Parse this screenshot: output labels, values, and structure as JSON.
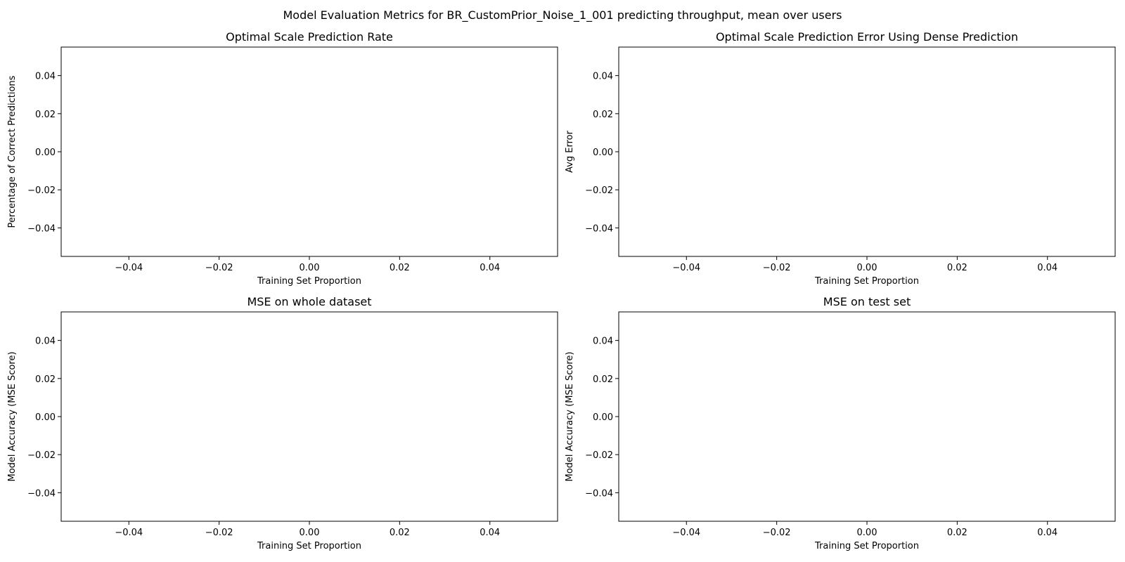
{
  "suptitle": "Model Evaluation Metrics for BR_CustomPrior_Noise_1_001 predicting throughput, mean over users",
  "chart_data": [
    {
      "type": "line",
      "title": "Optimal Scale Prediction Rate",
      "xlabel": "Training Set Proportion",
      "ylabel": "Percentage of Correct Predictions",
      "xlim": [
        -0.055,
        0.055
      ],
      "ylim": [
        -0.055,
        0.055
      ],
      "xticks": [
        -0.04,
        -0.02,
        0.0,
        0.02,
        0.04
      ],
      "xtick_labels": [
        "−0.04",
        "−0.02",
        "0.00",
        "0.02",
        "0.04"
      ],
      "yticks": [
        0.04,
        0.02,
        0.0,
        -0.02,
        -0.04
      ],
      "ytick_labels": [
        "0.04",
        "0.02",
        "0.00",
        "−0.02",
        "−0.04"
      ],
      "series": [],
      "grid": false
    },
    {
      "type": "line",
      "title": "Optimal Scale Prediction Error Using Dense Prediction",
      "xlabel": "Training Set Proportion",
      "ylabel": "Avg Error",
      "xlim": [
        -0.055,
        0.055
      ],
      "ylim": [
        -0.055,
        0.055
      ],
      "xticks": [
        -0.04,
        -0.02,
        0.0,
        0.02,
        0.04
      ],
      "xtick_labels": [
        "−0.04",
        "−0.02",
        "0.00",
        "0.02",
        "0.04"
      ],
      "yticks": [
        0.04,
        0.02,
        0.0,
        -0.02,
        -0.04
      ],
      "ytick_labels": [
        "0.04",
        "0.02",
        "0.00",
        "−0.02",
        "−0.04"
      ],
      "series": [],
      "grid": false
    },
    {
      "type": "line",
      "title": "MSE on whole dataset",
      "xlabel": "Training Set Proportion",
      "ylabel": "Model Accuracy (MSE Score)",
      "xlim": [
        -0.055,
        0.055
      ],
      "ylim": [
        -0.055,
        0.055
      ],
      "xticks": [
        -0.04,
        -0.02,
        0.0,
        0.02,
        0.04
      ],
      "xtick_labels": [
        "−0.04",
        "−0.02",
        "0.00",
        "0.02",
        "0.04"
      ],
      "yticks": [
        0.04,
        0.02,
        0.0,
        -0.02,
        -0.04
      ],
      "ytick_labels": [
        "0.04",
        "0.02",
        "0.00",
        "−0.02",
        "−0.04"
      ],
      "series": [],
      "grid": false
    },
    {
      "type": "line",
      "title": "MSE on test set",
      "xlabel": "Training Set Proportion",
      "ylabel": "Model Accuracy (MSE Score)",
      "xlim": [
        -0.055,
        0.055
      ],
      "ylim": [
        -0.055,
        0.055
      ],
      "xticks": [
        -0.04,
        -0.02,
        0.0,
        0.02,
        0.04
      ],
      "xtick_labels": [
        "−0.04",
        "−0.02",
        "0.00",
        "0.02",
        "0.04"
      ],
      "yticks": [
        0.04,
        0.02,
        0.0,
        -0.02,
        -0.04
      ],
      "ytick_labels": [
        "0.04",
        "0.02",
        "0.00",
        "−0.02",
        "−0.04"
      ],
      "series": [],
      "grid": false
    }
  ]
}
